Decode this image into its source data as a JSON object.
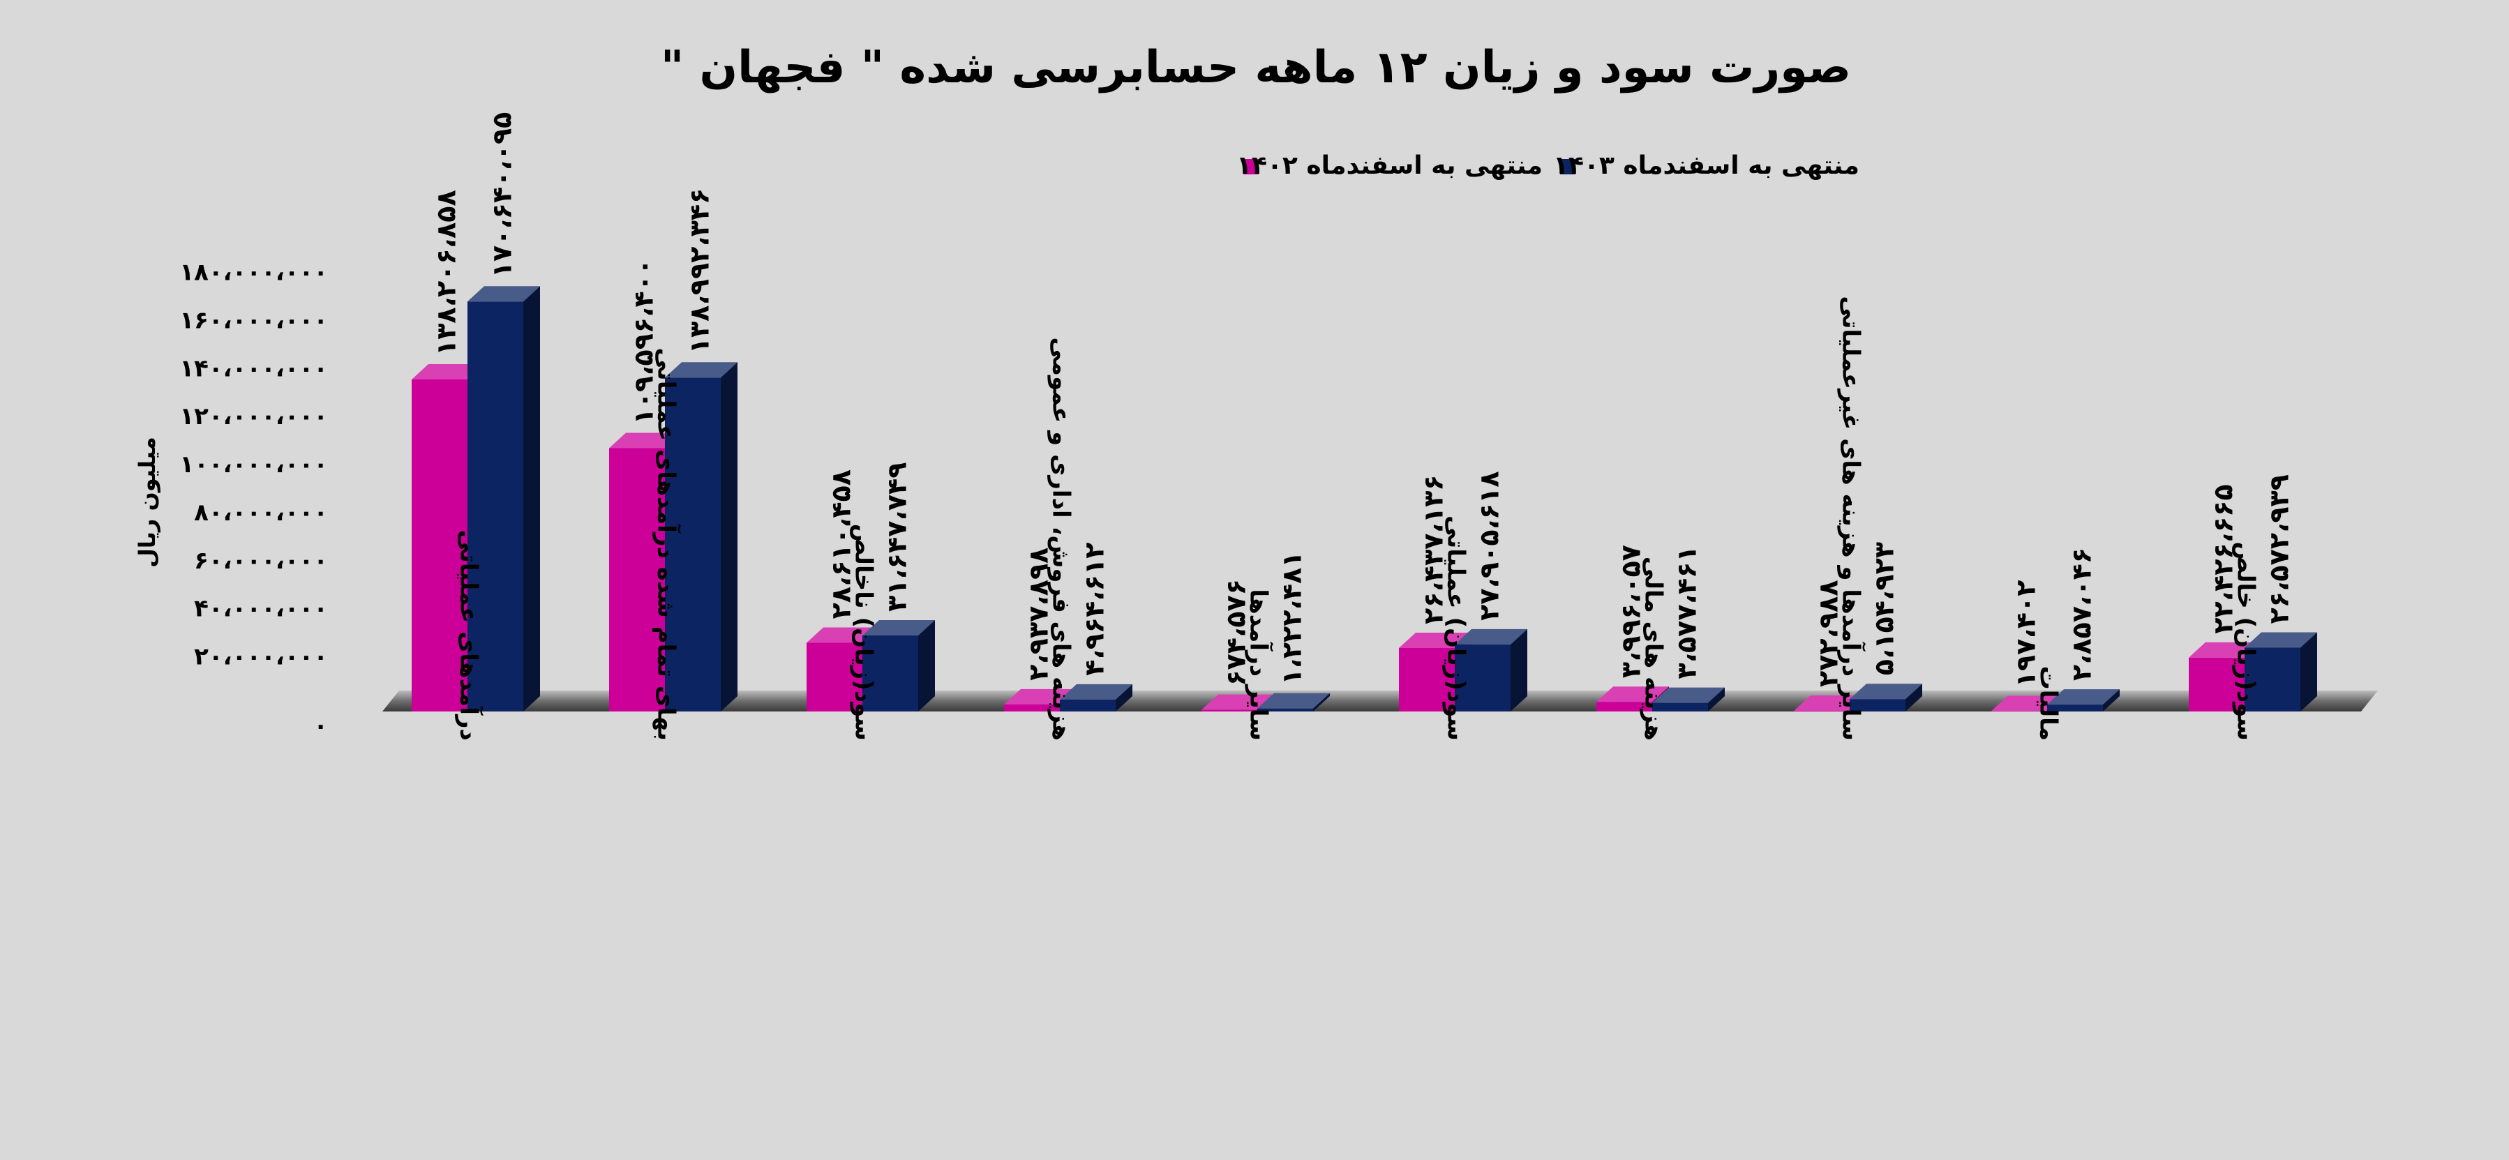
{
  "chart_data": {
    "type": "bar",
    "title": "صورت سود و زیان ۱۲ ماهه حسابرسی شده \" فجهان \"",
    "ylabel": "میلیون ریال",
    "xlabel": "",
    "ylim": [
      0,
      180000000
    ],
    "y_ticks": [
      0,
      20000000,
      40000000,
      60000000,
      80000000,
      100000000,
      120000000,
      140000000,
      160000000,
      180000000
    ],
    "y_tick_labels": [
      "۰",
      "۲۰،۰۰۰،۰۰۰",
      "۴۰،۰۰۰،۰۰۰",
      "۶۰،۰۰۰،۰۰۰",
      "۸۰،۰۰۰،۰۰۰",
      "۱۰۰،۰۰۰،۰۰۰",
      "۱۲۰،۰۰۰،۰۰۰",
      "۱۴۰،۰۰۰،۰۰۰",
      "۱۶۰،۰۰۰،۰۰۰",
      "۱۸۰،۰۰۰،۰۰۰"
    ],
    "grid": false,
    "legend_position": "top-center",
    "categories": [
      "درآمدهای عملیاتی",
      "بهای تمام شده درآمدهای عملیاتی",
      "سود(زیان) ناخالص",
      "هزینه های فروش، اداری و عمومی",
      "سایر درآمدها",
      "سود(زیان) عملیاتی",
      "هزینه های مالی",
      "سایر درآمدها و هزینه های غیرعملیاتی",
      "مالیات",
      "سود(زیان) خالص"
    ],
    "series": [
      {
        "name": "منتهی به اسفندماه ۱۴۰۲",
        "color": "#cc0099",
        "values": [
          138206858,
          109596400,
          28610458,
          2937898,
          674576,
          26437136,
          3996057,
          272988,
          197402,
          22426665
        ],
        "labels": [
          "۱۳۸،۲۰۶،۸۵۸",
          "۱۰۹،۵۹۶،۴۰۰",
          "۲۸،۶۱۰،۴۵۸",
          "۲،۹۳۷،۸۹۸",
          "۶۷۴،۵۷۶",
          "۲۶،۴۳۷،۱۳۶",
          "۳،۹۹۶،۰۵۷",
          "۲۷۲،۹۸۸",
          "۱۹۷،۴۰۲",
          "۲۲،۴۲۶،۶۶۵"
        ]
      },
      {
        "name": "منتهی به اسفندماه ۱۴۰۳",
        "color": "#0c2461",
        "values": [
          170640095,
          138992346,
          31647749,
          4964612,
          1222481,
          27905618,
          3577461,
          5154923,
          2857046,
          26572939
        ],
        "labels": [
          "۱۷۰،۶۴۰،۰۹۵",
          "۱۳۸،۹۹۲،۳۴۶",
          "۳۱،۶۴۷،۷۴۹",
          "۴،۹۶۴،۶۱۲",
          "۱،۲۲۲،۴۸۱",
          "۲۷،۹۰۵،۶۱۸",
          "۳،۵۷۷،۴۶۱",
          "۵،۱۵۴،۹۲۳",
          "۲،۸۵۷،۰۴۶",
          "۲۶،۵۷۲،۹۳۹"
        ]
      }
    ]
  }
}
